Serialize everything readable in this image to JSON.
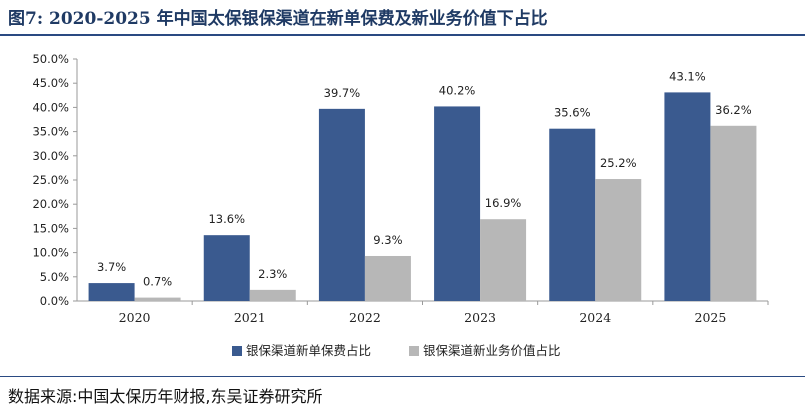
{
  "header": {
    "title": "图7:  2020-2025 年中国太保银保渠道在新单保费及新业务价值下占比"
  },
  "footer": {
    "source": "数据来源:中国太保历年财报,东吴证券研究所"
  },
  "chart_data": {
    "type": "bar",
    "title": "",
    "xlabel": "",
    "ylabel": "",
    "categories": [
      "2020",
      "2021",
      "2022",
      "2023",
      "2024",
      "2025"
    ],
    "series": [
      {
        "name": "银保渠道新单保费占比",
        "color": "#3a5a8f",
        "values": [
          3.7,
          13.6,
          39.7,
          40.2,
          35.6,
          43.1
        ],
        "labels": [
          "3.7%",
          "13.6%",
          "39.7%",
          "40.2%",
          "35.6%",
          "43.1%"
        ]
      },
      {
        "name": "银保渠道新业务价值占比",
        "color": "#b7b7b7",
        "values": [
          0.7,
          2.3,
          9.3,
          16.9,
          25.2,
          36.2
        ],
        "labels": [
          "0.7%",
          "2.3%",
          "9.3%",
          "16.9%",
          "25.2%",
          "36.2%"
        ]
      }
    ],
    "ylim": [
      0,
      50
    ],
    "yticks": [
      "0.0%",
      "5.0%",
      "10.0%",
      "15.0%",
      "20.0%",
      "25.0%",
      "30.0%",
      "35.0%",
      "40.0%",
      "45.0%",
      "50.0%"
    ],
    "grid": false,
    "legend_position": "bottom"
  }
}
